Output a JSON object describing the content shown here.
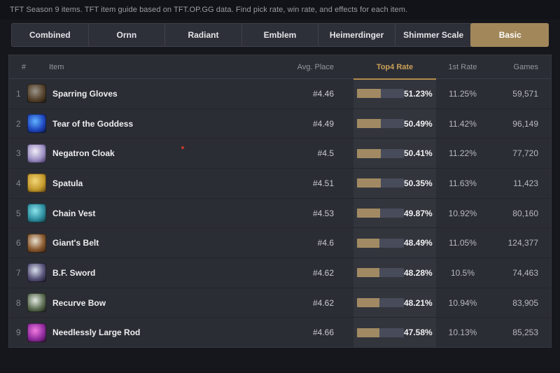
{
  "page": {
    "description": "TFT Season 9 items. TFT item guide based on TFT.OP.GG data. Find pick rate, win rate, and effects for each item."
  },
  "colors": {
    "accent_tab": "#a2875a",
    "sorted_header_text": "#c9a158",
    "sorted_header_underline": "#b28a4e",
    "bar_fill": "#a18a63",
    "bar_track": "#484b59",
    "top4_column_band": "#33353d",
    "table_background": "#2b2d34",
    "page_background": "#16171c"
  },
  "tabs": [
    {
      "label": "Combined",
      "active": false
    },
    {
      "label": "Ornn",
      "active": false
    },
    {
      "label": "Radiant",
      "active": false
    },
    {
      "label": "Emblem",
      "active": false
    },
    {
      "label": "Heimerdinger",
      "active": false
    },
    {
      "label": "Shimmer Scale",
      "active": false
    },
    {
      "label": "Basic",
      "active": true
    }
  ],
  "table": {
    "headers": {
      "rank": "#",
      "item": "Item",
      "avg_place": "Avg. Place",
      "top4_rate": "Top4 Rate",
      "first_rate": "1st Rate",
      "games": "Games"
    },
    "sorted_by": "Top4 Rate",
    "rows": [
      {
        "rank": "1",
        "item": "Sparring Gloves",
        "avg_place": "#4.46",
        "top4_rate": "51.23%",
        "top4_value": 51.23,
        "first_rate": "11.25%",
        "games": "59,571",
        "icon": "sparring-gloves-icon",
        "icon_colors": [
          "#9a948a",
          "#55422c",
          "#17110b"
        ]
      },
      {
        "rank": "2",
        "item": "Tear of the Goddess",
        "avg_place": "#4.49",
        "top4_rate": "50.49%",
        "top4_value": 50.49,
        "first_rate": "11.42%",
        "games": "96,149",
        "icon": "tear-of-the-goddess-icon",
        "icon_colors": [
          "#5fb2ff",
          "#2048c0",
          "#081030"
        ]
      },
      {
        "rank": "3",
        "item": "Negatron Cloak",
        "avg_place": "#4.5",
        "top4_rate": "50.41%",
        "top4_value": 50.41,
        "first_rate": "11.22%",
        "games": "77,720",
        "icon": "negatron-cloak-icon",
        "icon_colors": [
          "#f0eef6",
          "#9c8fc4",
          "#2a2144"
        ]
      },
      {
        "rank": "4",
        "item": "Spatula",
        "avg_place": "#4.51",
        "top4_rate": "50.35%",
        "top4_value": 50.35,
        "first_rate": "11.63%",
        "games": "11,423",
        "icon": "spatula-icon",
        "icon_colors": [
          "#f3d678",
          "#c49a2e",
          "#503a0e"
        ]
      },
      {
        "rank": "5",
        "item": "Chain Vest",
        "avg_place": "#4.53",
        "top4_rate": "49.87%",
        "top4_value": 49.87,
        "first_rate": "10.92%",
        "games": "80,160",
        "icon": "chain-vest-icon",
        "icon_colors": [
          "#8ce4ec",
          "#2f8fa0",
          "#0f2e36"
        ]
      },
      {
        "rank": "6",
        "item": "Giant's Belt",
        "avg_place": "#4.6",
        "top4_rate": "48.49%",
        "top4_value": 48.49,
        "first_rate": "11.05%",
        "games": "124,377",
        "icon": "giants-belt-icon",
        "icon_colors": [
          "#e9e2d2",
          "#8a5a30",
          "#2e1c0e"
        ]
      },
      {
        "rank": "7",
        "item": "B.F. Sword",
        "avg_place": "#4.62",
        "top4_rate": "48.28%",
        "top4_value": 48.28,
        "first_rate": "10.5%",
        "games": "74,463",
        "icon": "bf-sword-icon",
        "icon_colors": [
          "#d9e0ec",
          "#57537a",
          "#120e1e"
        ]
      },
      {
        "rank": "8",
        "item": "Recurve Bow",
        "avg_place": "#4.62",
        "top4_rate": "48.21%",
        "top4_value": 48.21,
        "first_rate": "10.94%",
        "games": "83,905",
        "icon": "recurve-bow-icon",
        "icon_colors": [
          "#e3e8e2",
          "#5d6e54",
          "#0e140c"
        ]
      },
      {
        "rank": "9",
        "item": "Needlessly Large Rod",
        "avg_place": "#4.66",
        "top4_rate": "47.58%",
        "top4_value": 47.58,
        "first_rate": "10.13%",
        "games": "85,253",
        "icon": "needlessly-large-rod-icon",
        "icon_colors": [
          "#f27ae0",
          "#922da0",
          "#230a2c"
        ]
      }
    ]
  },
  "artifact": {
    "red_dot_color": "#c0392b"
  }
}
